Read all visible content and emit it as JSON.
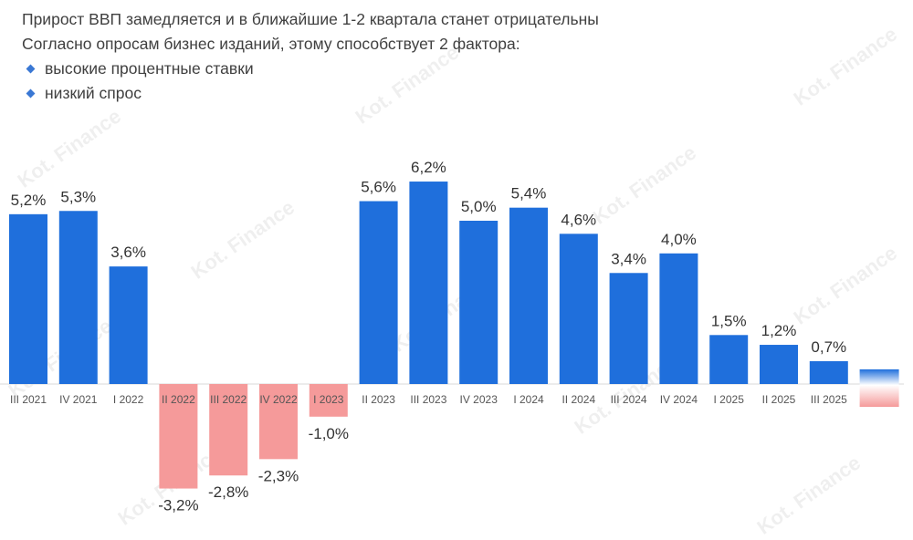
{
  "header": {
    "title": "Прирост ВВП замедляется и в ближайшие 1-2 квартала станет отрицательны",
    "subtitle": "Согласно опросам бизнес изданий, этому способствует 2 фактора:",
    "bullets": [
      "высокие процентные ставки",
      "низкий спрос"
    ]
  },
  "watermark": "Kot. Finance",
  "chart_data": {
    "type": "bar",
    "categories": [
      "III 2021",
      "IV 2021",
      "I 2022",
      "II 2022",
      "III 2022",
      "IV 2022",
      "I 2023",
      "II 2023",
      "III 2023",
      "IV 2023",
      "I 2024",
      "II 2024",
      "III 2024",
      "IV 2024",
      "I 2025",
      "II 2025",
      "III 2025",
      ""
    ],
    "values": [
      5.2,
      5.3,
      3.6,
      -3.2,
      -2.8,
      -2.3,
      -1.0,
      5.6,
      6.2,
      5.0,
      5.4,
      4.6,
      3.4,
      4.0,
      1.5,
      1.2,
      0.7,
      null
    ],
    "labels": [
      "5,2%",
      "5,3%",
      "3,6%",
      "-3,2%",
      "-2,8%",
      "-2,3%",
      "-1,0%",
      "5,6%",
      "6,2%",
      "5,0%",
      "5,4%",
      "4,6%",
      "3,4%",
      "4,0%",
      "1,5%",
      "1,2%",
      "0,7%",
      ""
    ],
    "forecast_range": [
      -0.7,
      0.45
    ],
    "colors": {
      "positive": "#1f6fdc",
      "negative": "#f59a9a",
      "forecast_top": "#1f6fdc",
      "forecast_bottom": "#f59a9a"
    },
    "grid": false,
    "title": "",
    "xlabel": "",
    "ylabel": ""
  }
}
